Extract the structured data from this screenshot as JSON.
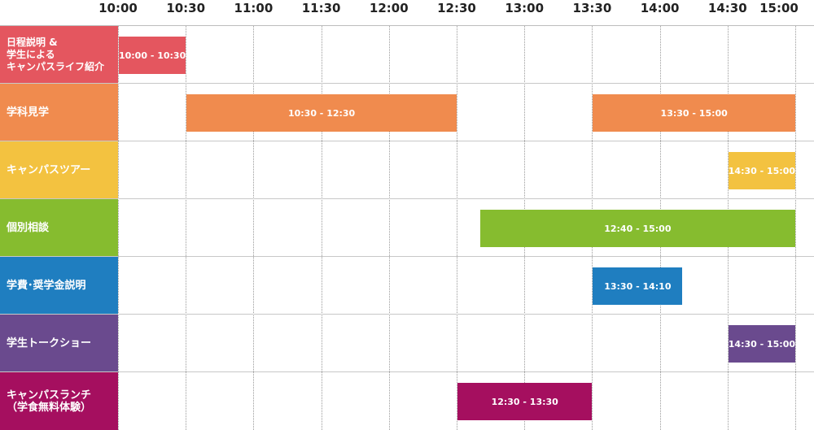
{
  "axis": {
    "ticks": [
      "10:00",
      "10:30",
      "11:00",
      "11:30",
      "12:00",
      "12:30",
      "13:00",
      "13:30",
      "14:00",
      "14:30",
      "15:00"
    ]
  },
  "rows": [
    {
      "label": "日程説明 &\n学生による\nキャンパスライフ紹介",
      "color": "#e4565f",
      "sessions": [
        {
          "start": "10:00",
          "end": "10:30",
          "text": "10:00 - 10:30"
        }
      ]
    },
    {
      "label": "学科見学",
      "color": "#f08b4e",
      "sessions": [
        {
          "start": "10:30",
          "end": "12:30",
          "text": "10:30 - 12:30"
        },
        {
          "start": "13:30",
          "end": "15:00",
          "text": "13:30 - 15:00"
        }
      ]
    },
    {
      "label": "キャンパスツアー",
      "color": "#f3c240",
      "sessions": [
        {
          "start": "14:30",
          "end": "15:00",
          "text": "14:30 - 15:00"
        }
      ]
    },
    {
      "label": "個別相談",
      "color": "#86bc2f",
      "sessions": [
        {
          "start": "12:40",
          "end": "15:00",
          "text": "12:40 - 15:00"
        }
      ]
    },
    {
      "label": "学費･奨学金説明",
      "color": "#1f7ec0",
      "sessions": [
        {
          "start": "13:30",
          "end": "14:10",
          "text": "13:30 - 14:10"
        }
      ]
    },
    {
      "label": "学生トークショー",
      "color": "#6a4a8e",
      "sessions": [
        {
          "start": "14:30",
          "end": "15:00",
          "text": "14:30 - 15:00"
        }
      ]
    },
    {
      "label": "キャンパスランチ\n（学食無料体験）",
      "color": "#a50f5f",
      "sessions": [
        {
          "start": "12:30",
          "end": "13:30",
          "text": "12:30 - 13:30"
        }
      ]
    }
  ]
}
